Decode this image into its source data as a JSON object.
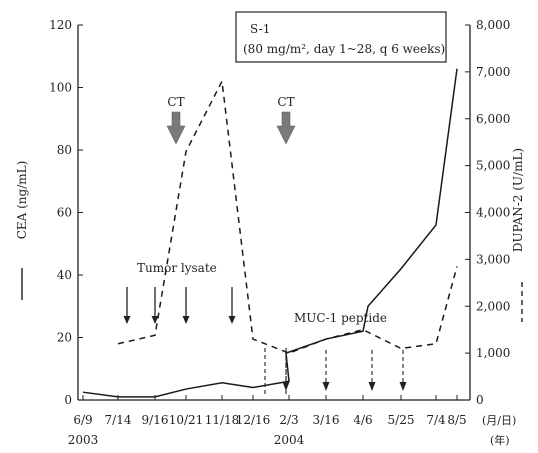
{
  "chart_data": {
    "type": "line",
    "x": [
      "6/9",
      "7/14",
      "9/16",
      "10/21",
      "11/18",
      "12/16",
      "2/3",
      "3/16",
      "4/6",
      "5/25",
      "7/4",
      "8/5"
    ],
    "years": [
      {
        "label": "2003",
        "at": "6/9"
      },
      {
        "label": "2004",
        "at": "2/3"
      }
    ],
    "x_unit_top": "(月/日)",
    "x_unit_bottom": "(年)",
    "axes": {
      "left": {
        "label": "CEA (ng/mL)",
        "range": [
          0,
          120
        ],
        "ticks": [
          0,
          20,
          40,
          60,
          80,
          100,
          120
        ]
      },
      "right": {
        "label": "DUPAN-2 (U/mL)",
        "range": [
          0,
          8000
        ],
        "ticks": [
          0,
          1000,
          2000,
          3000,
          4000,
          5000,
          6000,
          7000,
          8000
        ],
        "tick_labels": [
          "0",
          "1,000",
          "2,000",
          "3,000",
          "4,000",
          "5,000",
          "6,000",
          "7,000",
          "8,000"
        ]
      }
    },
    "series": [
      {
        "name": "CEA",
        "axis": "left",
        "style": "solid",
        "color": "#1a1a1a",
        "points": [
          [
            "6/9",
            2.5
          ],
          [
            "7/14",
            1.0
          ],
          [
            "9/16",
            1.0
          ],
          [
            "10/21",
            3.5
          ],
          [
            "11/18",
            5.5
          ],
          [
            "12/16",
            4.0
          ],
          [
            "2/3",
            6.0
          ],
          [
            "2/3+",
            15.0
          ],
          [
            "3/16",
            19.5
          ],
          [
            "4/6",
            22.0
          ],
          [
            "4/6+",
            30.0
          ],
          [
            "5/25",
            42.0
          ],
          [
            "7/4",
            56.0
          ],
          [
            "8/5",
            106.0
          ]
        ]
      },
      {
        "name": "DUPAN-2",
        "axis": "right",
        "style": "dashed",
        "color": "#1a1a1a",
        "points": [
          [
            "7/14",
            1200
          ],
          [
            "9/16",
            1380
          ],
          [
            "10/21",
            5300
          ],
          [
            "11/18",
            6800
          ],
          [
            "12/16",
            1300
          ],
          [
            "2/3",
            1000
          ],
          [
            "3/16",
            1300
          ],
          [
            "4/6",
            1500
          ],
          [
            "5/25",
            1100
          ],
          [
            "7/4",
            1200
          ],
          [
            "8/5",
            2850
          ]
        ]
      }
    ],
    "annotations": {
      "ct": [
        {
          "label": "CT",
          "at": "10/21-"
        },
        {
          "label": "CT",
          "at": "2/3+"
        }
      ],
      "s1_box": {
        "title": "S-1",
        "detail": "(80 mg/m², day 1~28, q 6 weeks)"
      },
      "tumor_lysate": {
        "label": "Tumor lysate",
        "arrows": [
          "7/14+",
          "9/16",
          "10/21",
          "11/18+"
        ]
      },
      "muc1": {
        "label": "MUC-1 peptide",
        "arrows": [
          "2/3+",
          "3/16",
          "5/25-",
          "5/25+"
        ]
      },
      "dashed_drops": [
        "12/16+",
        "2/3+"
      ]
    },
    "legend_marks": {
      "left": "—",
      "right": "---"
    }
  }
}
